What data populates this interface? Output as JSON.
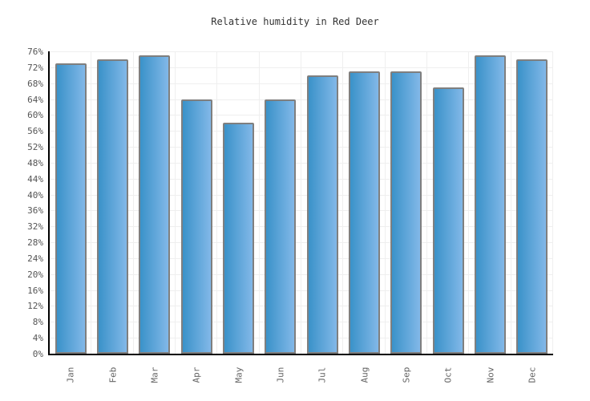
{
  "chart_data": {
    "type": "bar",
    "title": "Relative humidity in Red Deer",
    "categories": [
      "Jan",
      "Feb",
      "Mar",
      "Apr",
      "May",
      "Jun",
      "Jul",
      "Aug",
      "Sep",
      "Oct",
      "Nov",
      "Dec"
    ],
    "values": [
      73,
      74,
      75,
      64,
      58,
      64,
      70,
      71,
      71,
      67,
      75,
      74
    ],
    "unit": "%",
    "xlabel": "",
    "ylabel": "",
    "ylim": [
      0,
      76
    ],
    "ytick_step": 4,
    "ytick_labels": [
      "0%",
      "4%",
      "8%",
      "12%",
      "16%",
      "20%",
      "24%",
      "28%",
      "32%",
      "36%",
      "40%",
      "44%",
      "48%",
      "52%",
      "56%",
      "60%",
      "64%",
      "68%",
      "72%",
      "76%"
    ],
    "grid": true,
    "legend": "none",
    "colors": {
      "bar_gradient_left": "#3a92c9",
      "bar_gradient_right": "#82b8e8",
      "bar_border": "#7f7f7f",
      "axis": "#000000",
      "gridline": "#efefef",
      "y_tick_label": "#555555",
      "x_tick_label": "#666666",
      "title_text": "#333333",
      "background": "#ffffff"
    }
  }
}
